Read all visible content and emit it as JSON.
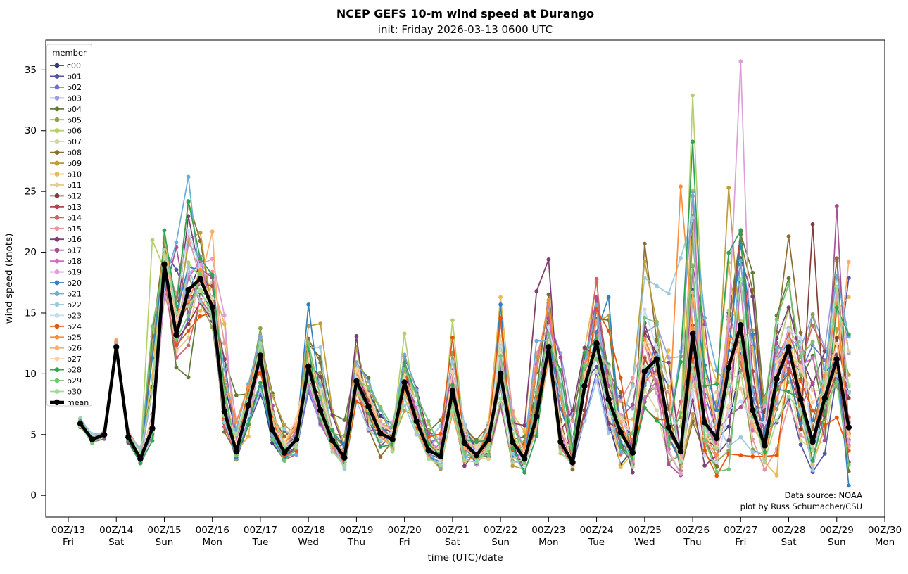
{
  "title": "NCEP GEFS 10-m wind speed at Durango",
  "subtitle": "init: Friday 2026-03-13 0600 UTC",
  "axes": {
    "xlabel": "time (UTC)/date",
    "ylabel": "wind speed (knots)",
    "yticks": [
      0,
      5,
      10,
      15,
      20,
      25,
      30,
      35
    ],
    "ylim": [
      -1.783,
      37.45
    ],
    "xticks": [
      {
        "top": "00Z/13",
        "bottom": "Fri"
      },
      {
        "top": "00Z/14",
        "bottom": "Sat"
      },
      {
        "top": "00Z/15",
        "bottom": "Sun"
      },
      {
        "top": "00Z/16",
        "bottom": "Mon"
      },
      {
        "top": "00Z/17",
        "bottom": "Tue"
      },
      {
        "top": "00Z/18",
        "bottom": "Wed"
      },
      {
        "top": "00Z/19",
        "bottom": "Thu"
      },
      {
        "top": "00Z/20",
        "bottom": "Fri"
      },
      {
        "top": "00Z/21",
        "bottom": "Sat"
      },
      {
        "top": "00Z/22",
        "bottom": "Sun"
      },
      {
        "top": "00Z/23",
        "bottom": "Mon"
      },
      {
        "top": "00Z/24",
        "bottom": "Tue"
      },
      {
        "top": "00Z/25",
        "bottom": "Wed"
      },
      {
        "top": "00Z/26",
        "bottom": "Thu"
      },
      {
        "top": "00Z/27",
        "bottom": "Fri"
      },
      {
        "top": "00Z/28",
        "bottom": "Sat"
      },
      {
        "top": "00Z/29",
        "bottom": "Sun"
      },
      {
        "top": "00Z/30",
        "bottom": "Mon"
      }
    ]
  },
  "legend": {
    "title": "member",
    "entries": [
      {
        "label": "c00",
        "color": "#393b79"
      },
      {
        "label": "p01",
        "color": "#5254a3"
      },
      {
        "label": "p02",
        "color": "#6b6ecf"
      },
      {
        "label": "p03",
        "color": "#9c9ede"
      },
      {
        "label": "p04",
        "color": "#637939"
      },
      {
        "label": "p05",
        "color": "#8ca252"
      },
      {
        "label": "p06",
        "color": "#b5cf6b"
      },
      {
        "label": "p07",
        "color": "#cedb9c"
      },
      {
        "label": "p08",
        "color": "#8c6d31"
      },
      {
        "label": "p09",
        "color": "#bd9e39"
      },
      {
        "label": "p10",
        "color": "#e7ba52"
      },
      {
        "label": "p11",
        "color": "#e7cb94"
      },
      {
        "label": "p12",
        "color": "#843c39"
      },
      {
        "label": "p13",
        "color": "#ad494a"
      },
      {
        "label": "p14",
        "color": "#d6616b"
      },
      {
        "label": "p15",
        "color": "#e7969c"
      },
      {
        "label": "p16",
        "color": "#7b4173"
      },
      {
        "label": "p17",
        "color": "#a55194"
      },
      {
        "label": "p18",
        "color": "#ce6dbd"
      },
      {
        "label": "p19",
        "color": "#de9ed6"
      },
      {
        "label": "p20",
        "color": "#3182bd"
      },
      {
        "label": "p21",
        "color": "#6baed6"
      },
      {
        "label": "p22",
        "color": "#9ecae1"
      },
      {
        "label": "p23",
        "color": "#c6dbef"
      },
      {
        "label": "p24",
        "color": "#e6550d"
      },
      {
        "label": "p25",
        "color": "#fd8d3c"
      },
      {
        "label": "p26",
        "color": "#fdae6b"
      },
      {
        "label": "p27",
        "color": "#fdd0a2"
      },
      {
        "label": "p28",
        "color": "#31a354"
      },
      {
        "label": "p29",
        "color": "#74c476"
      },
      {
        "label": "p30",
        "color": "#a1d99b"
      },
      {
        "label": "mean",
        "color": "#000000"
      }
    ]
  },
  "annotation": {
    "line1": "Data source: NOAA",
    "line2": "plot by Russ Schumacher/CSU"
  },
  "chart_data": {
    "type": "line",
    "title": "NCEP GEFS 10-m wind speed at Durango",
    "xlabel": "time (UTC)/date",
    "ylabel": "wind speed (knots)",
    "x_axis_days": [
      "00Z/13 Fri",
      "00Z/14 Sat",
      "00Z/15 Sun",
      "00Z/16 Mon",
      "00Z/17 Tue",
      "00Z/18 Wed",
      "00Z/19 Thu",
      "00Z/20 Fri",
      "00Z/21 Sat",
      "00Z/22 Sun",
      "00Z/23 Mon",
      "00Z/24 Tue",
      "00Z/25 Wed",
      "00Z/26 Thu",
      "00Z/27 Fri",
      "00Z/28 Sat",
      "00Z/29 Sun",
      "00Z/30 Mon"
    ],
    "time_start_days_after_00Z13": 0.25,
    "time_step_days": 0.25,
    "n_points": 65,
    "ylim": [
      -1.783,
      37.45
    ],
    "grid": false,
    "legend_position": "upper left",
    "mean_series": [
      5.9,
      4.6,
      5.0,
      12.2,
      4.8,
      3.0,
      5.5,
      19.0,
      13.2,
      16.9,
      17.8,
      15.5,
      6.9,
      3.6,
      7.4,
      11.5,
      5.4,
      3.5,
      4.6,
      10.6,
      7.0,
      4.5,
      3.1,
      9.4,
      7.3,
      5.1,
      4.6,
      9.3,
      6.1,
      3.7,
      3.2,
      8.6,
      4.3,
      3.3,
      4.6,
      10.0,
      4.4,
      3.0,
      6.5,
      12.2,
      4.4,
      2.7,
      9.0,
      12.5,
      7.9,
      5.2,
      3.5,
      10.2,
      11.2,
      5.6,
      3.6,
      13.3,
      6.0,
      4.7,
      10.5,
      14.0,
      7.0,
      4.1,
      9.6,
      12.2,
      7.9,
      4.4,
      8.0,
      11.2,
      5.6
    ],
    "ensemble_envelope_max": [
      6.7,
      5.3,
      5.6,
      13.0,
      5.6,
      4.2,
      21.0,
      21.8,
      20.8,
      26.2,
      21.7,
      21.7,
      17.4,
      8.8,
      10.4,
      14.9,
      9.0,
      6.2,
      8.6,
      15.7,
      14.2,
      7.4,
      6.2,
      13.1,
      11.2,
      8.2,
      7.0,
      13.4,
      9.4,
      6.6,
      6.5,
      14.4,
      7.6,
      5.6,
      7.0,
      16.5,
      8.3,
      6.3,
      16.8,
      19.4,
      16.7,
      9.3,
      13.9,
      17.8,
      16.3,
      10.6,
      14.5,
      20.7,
      18.1,
      16.6,
      25.5,
      32.9,
      18.8,
      13.3,
      25.3,
      35.7,
      21.1,
      12.4,
      18.7,
      21.3,
      18.8,
      22.3,
      14.7,
      23.8,
      19.2
    ],
    "ensemble_envelope_min": [
      5.4,
      4.1,
      4.4,
      11.3,
      4.0,
      2.4,
      4.0,
      15.8,
      8.4,
      9.5,
      13.5,
      13.0,
      4.3,
      2.2,
      3.0,
      5.5,
      2.9,
      1.6,
      2.3,
      6.3,
      4.4,
      2.6,
      1.5,
      6.3,
      4.3,
      2.6,
      1.5,
      5.6,
      3.3,
      1.6,
      1.3,
      5.2,
      1.9,
      1.6,
      0.4,
      5.3,
      1.6,
      0.9,
      2.2,
      6.7,
      2.5,
      1.4,
      0.9,
      6.2,
      3.4,
      1.0,
      0.6,
      4.5,
      3.3,
      1.0,
      0.6,
      4.3,
      1.6,
      0.6,
      0.05,
      3.3,
      1.9,
      1.0,
      0.3,
      5.0,
      2.0,
      1.2,
      0.9,
      4.4,
      0.8
    ],
    "members": [
      "c00",
      "p01",
      "p02",
      "p03",
      "p04",
      "p05",
      "p06",
      "p07",
      "p08",
      "p09",
      "p10",
      "p11",
      "p12",
      "p13",
      "p14",
      "p15",
      "p16",
      "p17",
      "p18",
      "p19",
      "p20",
      "p21",
      "p22",
      "p23",
      "p24",
      "p25",
      "p26",
      "p27",
      "p28",
      "p29",
      "p30"
    ],
    "notable_member_points": [
      [
        "p06",
        6,
        21.0
      ],
      [
        "p28",
        7,
        21.8
      ],
      [
        "p17",
        8,
        20.4
      ],
      [
        "p21",
        8,
        20.8
      ],
      [
        "p21",
        9,
        26.2
      ],
      [
        "p28",
        9,
        24.2
      ],
      [
        "p09",
        10,
        21.6
      ],
      [
        "p26",
        11,
        21.7
      ],
      [
        "p20",
        19,
        15.7
      ],
      [
        "p16",
        23,
        13.1
      ],
      [
        "p06",
        27,
        13.3
      ],
      [
        "p06",
        31,
        14.4
      ],
      [
        "p10",
        35,
        16.3
      ],
      [
        "p20",
        35,
        15.7
      ],
      [
        "p24",
        35,
        14.6
      ],
      [
        "p10",
        38,
        16.8
      ],
      [
        "p10",
        39,
        19.4
      ],
      [
        "p14",
        43,
        17.8
      ],
      [
        "p20",
        44,
        16.3
      ],
      [
        "p08",
        47,
        20.7
      ],
      [
        "p25",
        50,
        25.4
      ],
      [
        "p06",
        51,
        32.9
      ],
      [
        "p28",
        51,
        29.1
      ],
      [
        "p04",
        51,
        23.0
      ],
      [
        "p09",
        54,
        25.3
      ],
      [
        "p19",
        55,
        35.7
      ],
      [
        "p08",
        55,
        20.9
      ],
      [
        "p24",
        54,
        3.4
      ],
      [
        "p24",
        55,
        3.3
      ],
      [
        "p24",
        56,
        3.2
      ],
      [
        "p24",
        57,
        3.2
      ],
      [
        "p24",
        58,
        3.3
      ],
      [
        "p08",
        59,
        21.3
      ],
      [
        "p12",
        61,
        22.3
      ],
      [
        "p17",
        63,
        23.8
      ],
      [
        "p26",
        64,
        19.2
      ],
      [
        "p01",
        64,
        17.9
      ],
      [
        "p20",
        64,
        0.8
      ]
    ]
  }
}
